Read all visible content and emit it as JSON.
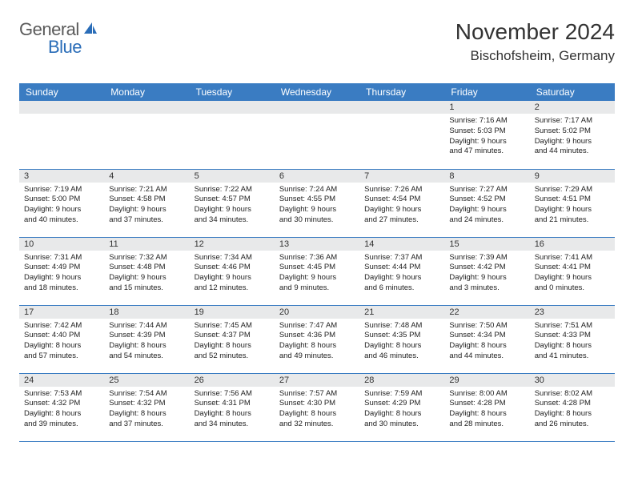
{
  "logo": {
    "text_gray": "General",
    "text_blue": "Blue"
  },
  "header": {
    "month_title": "November 2024",
    "location": "Bischofsheim, Germany"
  },
  "colors": {
    "header_bg": "#3a7cc2",
    "header_text": "#ffffff",
    "daynum_bg": "#e8e9ea",
    "border": "#3a7cc2"
  },
  "weekdays": [
    "Sunday",
    "Monday",
    "Tuesday",
    "Wednesday",
    "Thursday",
    "Friday",
    "Saturday"
  ],
  "weeks": [
    [
      null,
      null,
      null,
      null,
      null,
      {
        "num": "1",
        "sunrise": "7:16 AM",
        "sunset": "5:03 PM",
        "daylight_h": "9",
        "daylight_m": "47"
      },
      {
        "num": "2",
        "sunrise": "7:17 AM",
        "sunset": "5:02 PM",
        "daylight_h": "9",
        "daylight_m": "44"
      }
    ],
    [
      {
        "num": "3",
        "sunrise": "7:19 AM",
        "sunset": "5:00 PM",
        "daylight_h": "9",
        "daylight_m": "40"
      },
      {
        "num": "4",
        "sunrise": "7:21 AM",
        "sunset": "4:58 PM",
        "daylight_h": "9",
        "daylight_m": "37"
      },
      {
        "num": "5",
        "sunrise": "7:22 AM",
        "sunset": "4:57 PM",
        "daylight_h": "9",
        "daylight_m": "34"
      },
      {
        "num": "6",
        "sunrise": "7:24 AM",
        "sunset": "4:55 PM",
        "daylight_h": "9",
        "daylight_m": "30"
      },
      {
        "num": "7",
        "sunrise": "7:26 AM",
        "sunset": "4:54 PM",
        "daylight_h": "9",
        "daylight_m": "27"
      },
      {
        "num": "8",
        "sunrise": "7:27 AM",
        "sunset": "4:52 PM",
        "daylight_h": "9",
        "daylight_m": "24"
      },
      {
        "num": "9",
        "sunrise": "7:29 AM",
        "sunset": "4:51 PM",
        "daylight_h": "9",
        "daylight_m": "21"
      }
    ],
    [
      {
        "num": "10",
        "sunrise": "7:31 AM",
        "sunset": "4:49 PM",
        "daylight_h": "9",
        "daylight_m": "18"
      },
      {
        "num": "11",
        "sunrise": "7:32 AM",
        "sunset": "4:48 PM",
        "daylight_h": "9",
        "daylight_m": "15"
      },
      {
        "num": "12",
        "sunrise": "7:34 AM",
        "sunset": "4:46 PM",
        "daylight_h": "9",
        "daylight_m": "12"
      },
      {
        "num": "13",
        "sunrise": "7:36 AM",
        "sunset": "4:45 PM",
        "daylight_h": "9",
        "daylight_m": "9"
      },
      {
        "num": "14",
        "sunrise": "7:37 AM",
        "sunset": "4:44 PM",
        "daylight_h": "9",
        "daylight_m": "6"
      },
      {
        "num": "15",
        "sunrise": "7:39 AM",
        "sunset": "4:42 PM",
        "daylight_h": "9",
        "daylight_m": "3"
      },
      {
        "num": "16",
        "sunrise": "7:41 AM",
        "sunset": "4:41 PM",
        "daylight_h": "9",
        "daylight_m": "0"
      }
    ],
    [
      {
        "num": "17",
        "sunrise": "7:42 AM",
        "sunset": "4:40 PM",
        "daylight_h": "8",
        "daylight_m": "57"
      },
      {
        "num": "18",
        "sunrise": "7:44 AM",
        "sunset": "4:39 PM",
        "daylight_h": "8",
        "daylight_m": "54"
      },
      {
        "num": "19",
        "sunrise": "7:45 AM",
        "sunset": "4:37 PM",
        "daylight_h": "8",
        "daylight_m": "52"
      },
      {
        "num": "20",
        "sunrise": "7:47 AM",
        "sunset": "4:36 PM",
        "daylight_h": "8",
        "daylight_m": "49"
      },
      {
        "num": "21",
        "sunrise": "7:48 AM",
        "sunset": "4:35 PM",
        "daylight_h": "8",
        "daylight_m": "46"
      },
      {
        "num": "22",
        "sunrise": "7:50 AM",
        "sunset": "4:34 PM",
        "daylight_h": "8",
        "daylight_m": "44"
      },
      {
        "num": "23",
        "sunrise": "7:51 AM",
        "sunset": "4:33 PM",
        "daylight_h": "8",
        "daylight_m": "41"
      }
    ],
    [
      {
        "num": "24",
        "sunrise": "7:53 AM",
        "sunset": "4:32 PM",
        "daylight_h": "8",
        "daylight_m": "39"
      },
      {
        "num": "25",
        "sunrise": "7:54 AM",
        "sunset": "4:32 PM",
        "daylight_h": "8",
        "daylight_m": "37"
      },
      {
        "num": "26",
        "sunrise": "7:56 AM",
        "sunset": "4:31 PM",
        "daylight_h": "8",
        "daylight_m": "34"
      },
      {
        "num": "27",
        "sunrise": "7:57 AM",
        "sunset": "4:30 PM",
        "daylight_h": "8",
        "daylight_m": "32"
      },
      {
        "num": "28",
        "sunrise": "7:59 AM",
        "sunset": "4:29 PM",
        "daylight_h": "8",
        "daylight_m": "30"
      },
      {
        "num": "29",
        "sunrise": "8:00 AM",
        "sunset": "4:28 PM",
        "daylight_h": "8",
        "daylight_m": "28"
      },
      {
        "num": "30",
        "sunrise": "8:02 AM",
        "sunset": "4:28 PM",
        "daylight_h": "8",
        "daylight_m": "26"
      }
    ]
  ]
}
